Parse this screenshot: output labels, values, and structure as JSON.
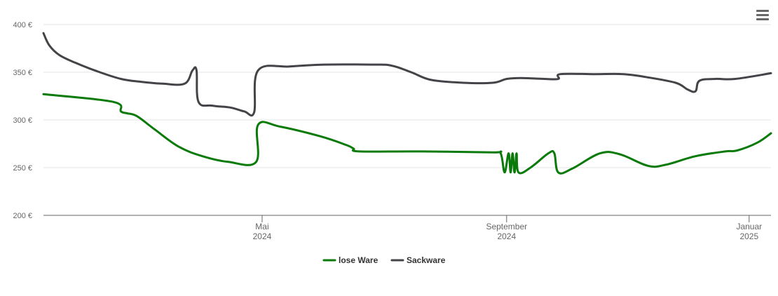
{
  "chart_data": {
    "type": "line",
    "title": "",
    "xlabel": "",
    "ylabel": "",
    "ylim": [
      200,
      400
    ],
    "yticks": [
      200,
      250,
      300,
      350,
      400
    ],
    "ytick_suffix": " €",
    "xlim": [
      "2024-01-12",
      "2025-01-12"
    ],
    "xticks": [
      {
        "date": "2024-05-01",
        "line1": "Mai",
        "line2": "2024"
      },
      {
        "date": "2024-09-01",
        "line1": "September",
        "line2": "2024"
      },
      {
        "date": "2025-01-01",
        "line1": "Januar",
        "line2": "2025"
      }
    ],
    "grid": true,
    "legend": "bottom-center",
    "series": [
      {
        "name": "lose Ware",
        "color": "#0a7a0a",
        "points": [
          [
            "2024-01-12",
            327
          ],
          [
            "2024-02-16",
            319
          ],
          [
            "2024-02-20",
            309
          ],
          [
            "2024-02-23",
            307
          ],
          [
            "2024-02-28",
            304
          ],
          [
            "2024-03-08",
            290
          ],
          [
            "2024-03-20",
            272
          ],
          [
            "2024-04-01",
            262
          ],
          [
            "2024-04-14",
            256
          ],
          [
            "2024-04-28",
            256
          ],
          [
            "2024-04-29",
            295
          ],
          [
            "2024-05-10",
            293
          ],
          [
            "2024-05-30",
            283
          ],
          [
            "2024-06-12",
            274
          ],
          [
            "2024-06-16",
            270
          ],
          [
            "2024-06-19",
            267
          ],
          [
            "2024-07-20",
            267
          ],
          [
            "2024-08-25",
            266
          ],
          [
            "2024-08-29",
            265
          ],
          [
            "2024-08-31",
            245
          ],
          [
            "2024-09-02",
            265
          ],
          [
            "2024-09-03",
            245
          ],
          [
            "2024-09-04",
            265
          ],
          [
            "2024-09-05",
            245
          ],
          [
            "2024-09-06",
            265
          ],
          [
            "2024-09-07",
            245
          ],
          [
            "2024-09-13",
            250
          ],
          [
            "2024-09-22",
            265
          ],
          [
            "2024-09-25",
            265
          ],
          [
            "2024-09-27",
            245
          ],
          [
            "2024-10-04",
            249
          ],
          [
            "2024-10-18",
            265
          ],
          [
            "2024-10-28",
            264
          ],
          [
            "2024-11-11",
            252
          ],
          [
            "2024-11-20",
            253
          ],
          [
            "2024-12-05",
            262
          ],
          [
            "2024-12-20",
            267
          ],
          [
            "2024-12-26",
            268
          ],
          [
            "2025-01-05",
            276
          ],
          [
            "2025-01-12",
            286
          ]
        ]
      },
      {
        "name": "Sackware",
        "color": "#444448",
        "points": [
          [
            "2024-01-12",
            391
          ],
          [
            "2024-01-15",
            378
          ],
          [
            "2024-01-20",
            368
          ],
          [
            "2024-01-28",
            360
          ],
          [
            "2024-02-08",
            351
          ],
          [
            "2024-02-20",
            343
          ],
          [
            "2024-03-01",
            340
          ],
          [
            "2024-03-12",
            338
          ],
          [
            "2024-03-23",
            338
          ],
          [
            "2024-03-27",
            352
          ],
          [
            "2024-03-29",
            352
          ],
          [
            "2024-03-30",
            319
          ],
          [
            "2024-04-06",
            315
          ],
          [
            "2024-04-15",
            313
          ],
          [
            "2024-04-22",
            309
          ],
          [
            "2024-04-27",
            308
          ],
          [
            "2024-04-29",
            352
          ],
          [
            "2024-05-15",
            356
          ],
          [
            "2024-06-01",
            358
          ],
          [
            "2024-06-25",
            358
          ],
          [
            "2024-07-05",
            357
          ],
          [
            "2024-07-15",
            350
          ],
          [
            "2024-07-25",
            342
          ],
          [
            "2024-08-10",
            339
          ],
          [
            "2024-08-25",
            339
          ],
          [
            "2024-09-01",
            343
          ],
          [
            "2024-09-08",
            344
          ],
          [
            "2024-09-20",
            343
          ],
          [
            "2024-09-27",
            343
          ],
          [
            "2024-09-28",
            348
          ],
          [
            "2024-10-15",
            348
          ],
          [
            "2024-10-30",
            348
          ],
          [
            "2024-11-10",
            345
          ],
          [
            "2024-11-25",
            339
          ],
          [
            "2024-12-01",
            332
          ],
          [
            "2024-12-05",
            330
          ],
          [
            "2024-12-07",
            341
          ],
          [
            "2024-12-15",
            343
          ],
          [
            "2024-12-25",
            343
          ],
          [
            "2025-01-12",
            349
          ]
        ]
      }
    ]
  }
}
